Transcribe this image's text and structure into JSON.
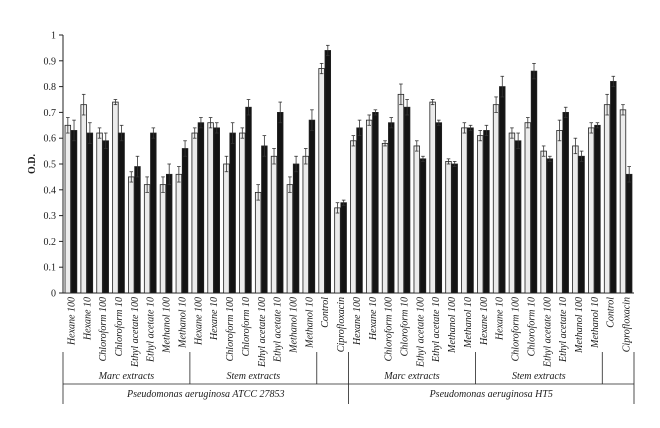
{
  "chart_data": {
    "type": "bar",
    "ylabel": "O.D.",
    "ylim": [
      0,
      1
    ],
    "yticks": [
      "0",
      "0.1",
      "0.2",
      "0.3",
      "0.4",
      "0.5",
      "0.6",
      "0.7",
      "0.8",
      "0.9",
      "1"
    ],
    "colors": {
      "light": "#ececec",
      "dark": "#141414",
      "stroke": "#222222"
    },
    "categories": [
      "Hexane 100",
      "Hexane 10",
      "Chloroform 100",
      "Chloroform 10",
      "Ethyl acetate 100",
      "Ethyl acetate 10",
      "Methanol 100",
      "Methanol 10",
      "Hexane 100",
      "Hexane 10",
      "Chloroform 100",
      "Chloroform 10",
      "Ethyl acetate 100",
      "Ethyl acetate 10",
      "Methanol 100",
      "Methanol 10",
      "Control",
      "Ciprofloxacin",
      "Hexane 100",
      "Hexane 10",
      "Chloroform 100",
      "Chloroform 10",
      "Ethyl acetate 100",
      "Ethyl acetate 10",
      "Methanol 100",
      "Methanol 10",
      "Hexane 100",
      "Hexane 10",
      "Chloroform 100",
      "Chloroform 10",
      "Ethyl acetate 100",
      "Ethyl acetate 10",
      "Methanol 100",
      "Methanol 10",
      "Control",
      "Ciprofloxacin"
    ],
    "series": [
      {
        "color": "light",
        "values": [
          0.65,
          0.73,
          0.62,
          0.74,
          0.45,
          0.42,
          0.42,
          0.46,
          0.62,
          0.66,
          0.5,
          0.62,
          0.39,
          0.53,
          0.42,
          0.53,
          0.87,
          0.33,
          0.59,
          0.67,
          0.58,
          0.77,
          0.57,
          0.74,
          0.51,
          0.64,
          0.61,
          0.73,
          0.62,
          0.66,
          0.55,
          0.63,
          0.57,
          0.64,
          0.73,
          0.71
        ],
        "errors": [
          0.03,
          0.04,
          0.02,
          0.01,
          0.02,
          0.03,
          0.03,
          0.03,
          0.02,
          0.02,
          0.03,
          0.02,
          0.03,
          0.03,
          0.03,
          0.03,
          0.02,
          0.02,
          0.02,
          0.02,
          0.01,
          0.04,
          0.02,
          0.01,
          0.01,
          0.02,
          0.02,
          0.03,
          0.02,
          0.02,
          0.02,
          0.04,
          0.03,
          0.02,
          0.04,
          0.02
        ]
      },
      {
        "color": "dark",
        "values": [
          0.63,
          0.62,
          0.59,
          0.62,
          0.49,
          0.62,
          0.46,
          0.56,
          0.66,
          0.64,
          0.62,
          0.72,
          0.57,
          0.7,
          0.5,
          0.67,
          0.94,
          0.35,
          0.64,
          0.7,
          0.66,
          0.72,
          0.52,
          0.66,
          0.5,
          0.64,
          0.63,
          0.8,
          0.59,
          0.86,
          0.52,
          0.7,
          0.53,
          0.65,
          0.82,
          0.46
        ],
        "errors": [
          0.04,
          0.04,
          0.03,
          0.03,
          0.04,
          0.02,
          0.04,
          0.03,
          0.02,
          0.02,
          0.04,
          0.03,
          0.04,
          0.04,
          0.03,
          0.04,
          0.02,
          0.01,
          0.03,
          0.01,
          0.02,
          0.03,
          0.01,
          0.01,
          0.01,
          0.01,
          0.02,
          0.04,
          0.03,
          0.03,
          0.01,
          0.02,
          0.02,
          0.01,
          0.02,
          0.03
        ]
      }
    ],
    "subgroups": [
      {
        "label": "Marc extracts",
        "from": 0,
        "to": 7
      },
      {
        "label": "Stem extracts",
        "from": 8,
        "to": 15
      },
      {
        "label": "Marc extracts",
        "from": 18,
        "to": 25
      },
      {
        "label": "Stem extracts",
        "from": 26,
        "to": 33
      }
    ],
    "groups": [
      {
        "label": "Pseudomonas aeruginosa ATCC 27853",
        "from": 0,
        "to": 17
      },
      {
        "label": "Pseudomonas aeruginosa HT5",
        "from": 18,
        "to": 35
      }
    ]
  }
}
